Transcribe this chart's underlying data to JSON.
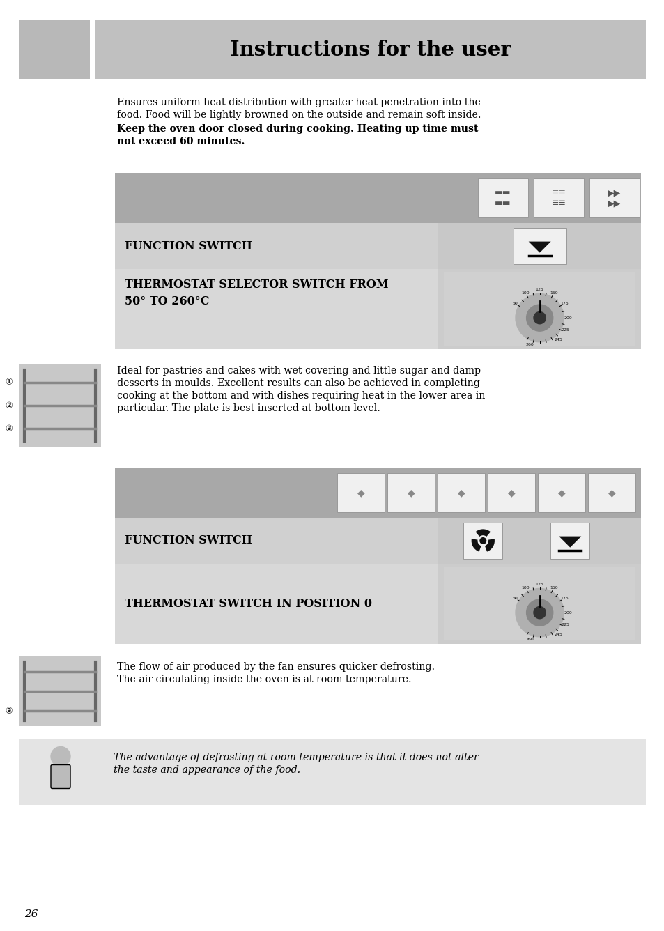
{
  "page_bg": "#ffffff",
  "header_icon_bg": "#b8b8b8",
  "header_bar_bg": "#c0c0c0",
  "header_text": "Instructions for the user",
  "section_banner_bg": "#a8a8a8",
  "section_left_bg": "#d0d0d0",
  "section_right_bg": "#c8c8c8",
  "icon_box_bg": "#f0f0f0",
  "icon_box_border": "#888888",
  "para_bg": "#e8e8e8",
  "page_number": "26",
  "para1_line1": "Ensures uniform heat distribution with greater heat penetration into the",
  "para1_line2": "food. Food will be lightly browned on the outside and remain soft inside.",
  "para1_bold1": "Keep the oven door closed during cooking. Heating up time must",
  "para1_bold2": "not exceed 60 minutes.",
  "section1_label1": "FUNCTION SWITCH",
  "section1_label2a": "THERMOSTAT SELECTOR SWITCH FROM",
  "section1_label2b": "50° TO 260°C",
  "para2_line1": "Ideal for pastries and cakes with wet covering and little sugar and damp",
  "para2_line2": "desserts in moulds. Excellent results can also be achieved in completing",
  "para2_line3": "cooking at the bottom and with dishes requiring heat in the lower area in",
  "para2_line4": "particular. The plate is best inserted at bottom level.",
  "section2_label1": "FUNCTION SWITCH",
  "section2_label2": "THERMOSTAT SWITCH IN POSITION 0",
  "para3_line1": "The flow of air produced by the fan ensures quicker defrosting.",
  "para3_line2": "The air circulating inside the oven is at room temperature.",
  "para4_line1": "The advantage of defrosting at room temperature is that it does not alter",
  "para4_line2": "the taste and appearance of the food."
}
